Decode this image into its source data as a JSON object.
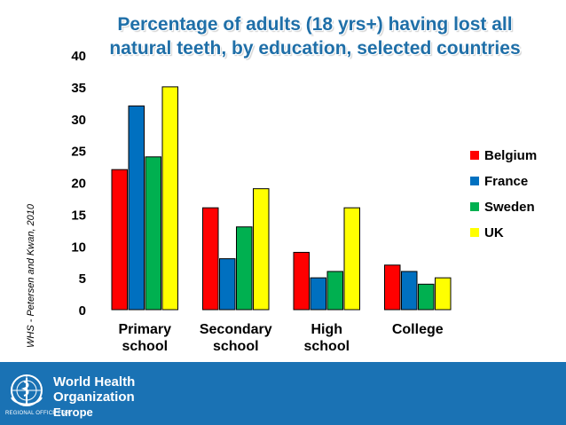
{
  "slide": {
    "title_line1": "Percentage of adults (18 yrs+) having lost all",
    "title_line2": "natural teeth, by education, selected countries",
    "side_source": "WHS - Petersen and Kwan, 2010"
  },
  "footer": {
    "org_line1": "World Health",
    "org_line2": "Organization",
    "region_prefix": "REGIONAL OFFICE FOR",
    "region_name": "Europe",
    "emblem_icon": "who-emblem-icon"
  },
  "chart_data": {
    "type": "bar",
    "title": "Percentage of adults (18 yrs+) having lost all natural teeth, by education, selected countries",
    "xlabel": "",
    "ylabel": "",
    "ylim": [
      0,
      40
    ],
    "yticks": [
      0,
      5,
      10,
      15,
      20,
      25,
      30,
      35,
      40
    ],
    "categories": [
      [
        "Primary",
        "school"
      ],
      [
        "Secondary",
        "school"
      ],
      [
        "High",
        "school"
      ],
      [
        "College"
      ]
    ],
    "series": [
      {
        "name": "Belgium",
        "color": "#ff0000",
        "values": [
          22,
          16,
          9,
          7
        ]
      },
      {
        "name": "France",
        "color": "#0070c0",
        "values": [
          32,
          8,
          5,
          6
        ]
      },
      {
        "name": "Sweden",
        "color": "#00b050",
        "values": [
          24,
          13,
          6,
          4
        ]
      },
      {
        "name": "UK",
        "color": "#ffff00",
        "values": [
          35,
          19,
          16,
          5
        ]
      }
    ],
    "legend_position": "right",
    "grid": false
  }
}
